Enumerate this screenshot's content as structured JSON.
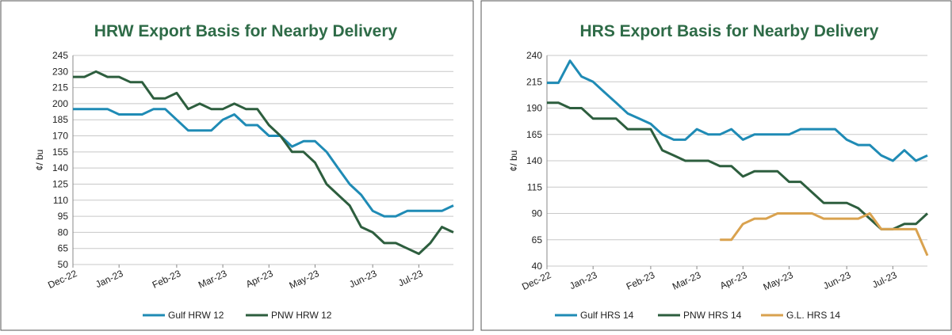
{
  "chart_data": [
    {
      "type": "line",
      "title": "HRW Export Basis for Nearby Delivery",
      "y_label": "¢/ bu",
      "categories": [
        "Dec-22",
        null,
        null,
        null,
        "Jan-23",
        null,
        null,
        null,
        null,
        "Feb-23",
        null,
        null,
        null,
        "Mar-23",
        null,
        null,
        null,
        "Apr-23",
        null,
        null,
        null,
        "May-23",
        null,
        null,
        null,
        null,
        "Jun-23",
        null,
        null,
        null,
        "Jul-23",
        null,
        null,
        null
      ],
      "series": [
        {
          "name": "Gulf HRW 12",
          "color": "#1f8bb5",
          "values": [
            195,
            195,
            195,
            195,
            190,
            190,
            190,
            195,
            195,
            185,
            175,
            175,
            175,
            185,
            190,
            180,
            180,
            170,
            170,
            160,
            165,
            165,
            155,
            140,
            125,
            115,
            100,
            95,
            95,
            100,
            100,
            100,
            100,
            105
          ]
        },
        {
          "name": "PNW HRW 12",
          "color": "#2d5e3e",
          "values": [
            225,
            225,
            230,
            225,
            225,
            220,
            220,
            205,
            205,
            210,
            195,
            200,
            195,
            195,
            200,
            195,
            195,
            180,
            170,
            155,
            155,
            145,
            125,
            115,
            105,
            85,
            80,
            70,
            70,
            65,
            60,
            70,
            85,
            80
          ]
        }
      ],
      "ylim": [
        50,
        245
      ],
      "yticks": [
        50,
        65,
        80,
        95,
        110,
        125,
        140,
        155,
        170,
        185,
        200,
        215,
        230,
        245
      ],
      "grid": true
    },
    {
      "type": "line",
      "title": "HRS Export Basis for Nearby Delivery",
      "y_label": "¢/ bu",
      "categories": [
        "Dec-22",
        null,
        null,
        null,
        "Jan-23",
        null,
        null,
        null,
        null,
        "Feb-23",
        null,
        null,
        null,
        "Mar-23",
        null,
        null,
        null,
        "Apr-23",
        null,
        null,
        null,
        "May-23",
        null,
        null,
        null,
        null,
        "Jun-23",
        null,
        null,
        null,
        "Jul-23",
        null,
        null,
        null
      ],
      "series": [
        {
          "name": "Gulf HRS 14",
          "color": "#1f8bb5",
          "values": [
            214,
            214,
            235,
            220,
            215,
            205,
            195,
            185,
            180,
            175,
            165,
            160,
            160,
            170,
            165,
            165,
            170,
            160,
            165,
            165,
            165,
            165,
            170,
            170,
            170,
            170,
            160,
            155,
            155,
            145,
            140,
            150,
            140,
            145
          ]
        },
        {
          "name": "PNW HRS 14",
          "color": "#2d5e3e",
          "values": [
            195,
            195,
            190,
            190,
            180,
            180,
            180,
            170,
            170,
            170,
            150,
            145,
            140,
            140,
            140,
            135,
            135,
            125,
            130,
            130,
            130,
            120,
            120,
            110,
            100,
            100,
            100,
            95,
            85,
            75,
            75,
            80,
            80,
            90
          ]
        },
        {
          "name": "G.L. HRS 14",
          "color": "#d9a24f",
          "values": [
            null,
            null,
            null,
            null,
            null,
            null,
            null,
            null,
            null,
            null,
            null,
            null,
            null,
            null,
            null,
            65,
            65,
            80,
            85,
            85,
            90,
            90,
            90,
            90,
            85,
            85,
            85,
            85,
            90,
            75,
            75,
            75,
            75,
            50
          ]
        }
      ],
      "ylim": [
        40,
        240
      ],
      "yticks": [
        40,
        65,
        90,
        115,
        140,
        165,
        190,
        215,
        240
      ],
      "grid": true
    }
  ]
}
